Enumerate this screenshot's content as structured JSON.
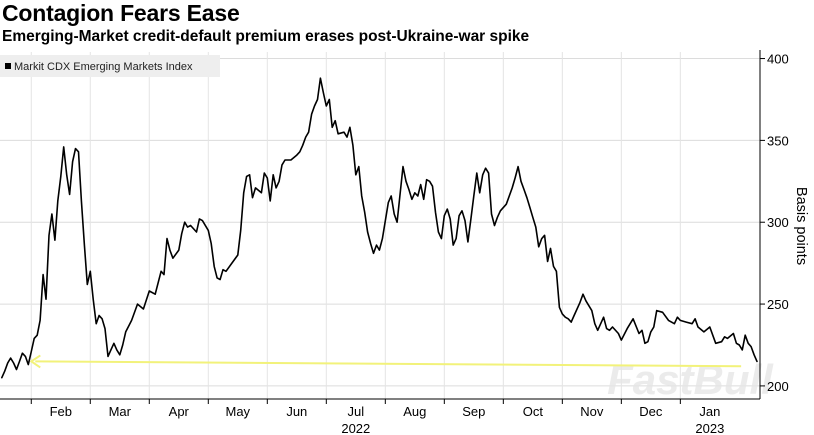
{
  "header": {
    "title": "Contagion Fears Ease",
    "subtitle": "Emerging-Market credit-default premium erases post-Ukraine-war spike"
  },
  "watermark": "FastBull",
  "chart_data": {
    "type": "line",
    "title": "Contagion Fears Ease",
    "subtitle": "Emerging-Market credit-default premium erases post-Ukraine-war spike",
    "ylabel": "Basis points",
    "xlabel": "",
    "ylim": [
      192,
      404
    ],
    "yticks": [
      200,
      250,
      300,
      350,
      400
    ],
    "grid": true,
    "legend": {
      "position": "top-left",
      "entries": [
        "Markit CDX Emerging Markets Index"
      ]
    },
    "x_tick_labels": [
      "Feb",
      "Mar",
      "Apr",
      "May",
      "Jun",
      "Jul",
      "Aug",
      "Sep",
      "Oct",
      "Nov",
      "Dec",
      "Jan"
    ],
    "x_tick_months": [
      1,
      2,
      3,
      4,
      5,
      6,
      7,
      8,
      9,
      10,
      11,
      12
    ],
    "year_labels": [
      {
        "label": "2022",
        "month": 6
      },
      {
        "label": "2023",
        "month": 12
      }
    ],
    "annotation": {
      "type": "arrow",
      "color": "#f2f27a",
      "from_month": 12.53,
      "to_month": 0.5,
      "from_value": 212,
      "to_value": 215
    },
    "series": [
      {
        "name": "Markit CDX Emerging Markets Index",
        "color": "#000000",
        "points": [
          [
            0.0,
            205
          ],
          [
            0.05,
            209
          ],
          [
            0.1,
            214
          ],
          [
            0.15,
            217
          ],
          [
            0.2,
            214
          ],
          [
            0.25,
            210
          ],
          [
            0.3,
            215
          ],
          [
            0.35,
            220
          ],
          [
            0.4,
            218
          ],
          [
            0.45,
            213
          ],
          [
            0.5,
            221
          ],
          [
            0.55,
            229
          ],
          [
            0.6,
            231
          ],
          [
            0.65,
            240
          ],
          [
            0.7,
            268
          ],
          [
            0.75,
            253
          ],
          [
            0.8,
            292
          ],
          [
            0.85,
            305
          ],
          [
            0.9,
            289
          ],
          [
            0.95,
            313
          ],
          [
            1.0,
            328
          ],
          [
            1.05,
            346
          ],
          [
            1.1,
            329
          ],
          [
            1.15,
            317
          ],
          [
            1.2,
            337
          ],
          [
            1.25,
            345
          ],
          [
            1.3,
            343
          ],
          [
            1.35,
            313
          ],
          [
            1.4,
            286
          ],
          [
            1.45,
            262
          ],
          [
            1.5,
            270
          ],
          [
            1.55,
            253
          ],
          [
            1.6,
            238
          ],
          [
            1.65,
            243
          ],
          [
            1.7,
            241
          ],
          [
            1.75,
            235
          ],
          [
            1.8,
            218
          ],
          [
            1.85,
            222
          ],
          [
            1.9,
            226
          ],
          [
            1.95,
            222
          ],
          [
            2.0,
            219
          ],
          [
            2.05,
            225
          ],
          [
            2.1,
            233
          ],
          [
            2.2,
            240
          ],
          [
            2.3,
            250
          ],
          [
            2.4,
            247
          ],
          [
            2.5,
            258
          ],
          [
            2.6,
            256
          ],
          [
            2.7,
            270
          ],
          [
            2.75,
            268
          ],
          [
            2.8,
            290
          ],
          [
            2.85,
            283
          ],
          [
            2.9,
            278
          ],
          [
            3.0,
            283
          ],
          [
            3.05,
            293
          ],
          [
            3.1,
            300
          ],
          [
            3.15,
            297
          ],
          [
            3.2,
            298
          ],
          [
            3.3,
            294
          ],
          [
            3.35,
            302
          ],
          [
            3.4,
            301
          ],
          [
            3.5,
            295
          ],
          [
            3.55,
            287
          ],
          [
            3.6,
            273
          ],
          [
            3.65,
            266
          ],
          [
            3.7,
            265
          ],
          [
            3.75,
            271
          ],
          [
            3.8,
            270
          ],
          [
            3.9,
            275
          ],
          [
            4.0,
            280
          ],
          [
            4.05,
            295
          ],
          [
            4.1,
            318
          ],
          [
            4.15,
            328
          ],
          [
            4.2,
            329
          ],
          [
            4.25,
            315
          ],
          [
            4.3,
            321
          ],
          [
            4.4,
            318
          ],
          [
            4.45,
            330
          ],
          [
            4.5,
            327
          ],
          [
            4.55,
            313
          ],
          [
            4.6,
            329
          ],
          [
            4.65,
            321
          ],
          [
            4.7,
            325
          ],
          [
            4.75,
            335
          ],
          [
            4.8,
            338
          ],
          [
            4.9,
            338
          ],
          [
            5.0,
            341
          ],
          [
            5.05,
            343
          ],
          [
            5.1,
            347
          ],
          [
            5.15,
            352
          ],
          [
            5.2,
            355
          ],
          [
            5.25,
            366
          ],
          [
            5.3,
            371
          ],
          [
            5.35,
            375
          ],
          [
            5.4,
            388
          ],
          [
            5.45,
            379
          ],
          [
            5.5,
            371
          ],
          [
            5.55,
            375
          ],
          [
            5.6,
            358
          ],
          [
            5.65,
            362
          ],
          [
            5.7,
            354
          ],
          [
            5.8,
            355
          ],
          [
            5.85,
            352
          ],
          [
            5.9,
            358
          ],
          [
            5.95,
            347
          ],
          [
            6.0,
            329
          ],
          [
            6.05,
            334
          ],
          [
            6.1,
            316
          ],
          [
            6.15,
            306
          ],
          [
            6.2,
            294
          ],
          [
            6.25,
            287
          ],
          [
            6.3,
            281
          ],
          [
            6.35,
            286
          ],
          [
            6.4,
            283
          ],
          [
            6.45,
            290
          ],
          [
            6.55,
            312
          ],
          [
            6.6,
            316
          ],
          [
            6.65,
            305
          ],
          [
            6.7,
            300
          ],
          [
            6.8,
            334
          ],
          [
            6.85,
            325
          ],
          [
            6.9,
            320
          ],
          [
            6.95,
            314
          ],
          [
            7.0,
            318
          ],
          [
            7.05,
            316
          ],
          [
            7.1,
            323
          ],
          [
            7.15,
            314
          ],
          [
            7.2,
            326
          ],
          [
            7.25,
            325
          ],
          [
            7.3,
            322
          ],
          [
            7.35,
            306
          ],
          [
            7.4,
            294
          ],
          [
            7.45,
            290
          ],
          [
            7.5,
            304
          ],
          [
            7.55,
            308
          ],
          [
            7.6,
            302
          ],
          [
            7.65,
            286
          ],
          [
            7.7,
            290
          ],
          [
            7.75,
            304
          ],
          [
            7.8,
            307
          ],
          [
            7.85,
            301
          ],
          [
            7.9,
            288
          ],
          [
            7.95,
            302
          ],
          [
            8.0,
            316
          ],
          [
            8.05,
            330
          ],
          [
            8.1,
            318
          ],
          [
            8.15,
            329
          ],
          [
            8.2,
            333
          ],
          [
            8.25,
            330
          ],
          [
            8.3,
            305
          ],
          [
            8.35,
            298
          ],
          [
            8.4,
            303
          ],
          [
            8.45,
            307
          ],
          [
            8.55,
            311
          ],
          [
            8.65,
            321
          ],
          [
            8.7,
            327
          ],
          [
            8.75,
            334
          ],
          [
            8.8,
            325
          ],
          [
            8.85,
            320
          ],
          [
            8.9,
            315
          ],
          [
            8.95,
            309
          ],
          [
            9.0,
            303
          ],
          [
            9.05,
            297
          ],
          [
            9.1,
            285
          ],
          [
            9.15,
            290
          ],
          [
            9.2,
            292
          ],
          [
            9.25,
            276
          ],
          [
            9.3,
            284
          ],
          [
            9.35,
            273
          ],
          [
            9.4,
            270
          ],
          [
            9.45,
            248
          ],
          [
            9.5,
            244
          ],
          [
            9.55,
            242
          ],
          [
            9.6,
            241
          ],
          [
            9.65,
            239
          ],
          [
            9.7,
            243
          ],
          [
            9.8,
            251
          ],
          [
            9.85,
            256
          ],
          [
            9.9,
            252
          ],
          [
            10.0,
            246
          ],
          [
            10.05,
            238
          ],
          [
            10.1,
            234
          ],
          [
            10.2,
            242
          ],
          [
            10.25,
            235
          ],
          [
            10.3,
            234
          ],
          [
            10.35,
            236
          ],
          [
            10.45,
            232
          ],
          [
            10.5,
            228
          ],
          [
            10.6,
            235
          ],
          [
            10.7,
            241
          ],
          [
            10.8,
            232
          ],
          [
            10.85,
            234
          ],
          [
            10.9,
            226
          ],
          [
            10.95,
            227
          ],
          [
            11.0,
            233
          ],
          [
            11.05,
            236
          ],
          [
            11.1,
            246
          ],
          [
            11.2,
            245
          ],
          [
            11.3,
            240
          ],
          [
            11.4,
            238
          ],
          [
            11.45,
            242
          ],
          [
            11.5,
            240
          ],
          [
            11.6,
            239
          ],
          [
            11.7,
            238
          ],
          [
            11.75,
            241
          ],
          [
            11.8,
            236
          ],
          [
            11.9,
            233
          ],
          [
            12.0,
            236
          ],
          [
            12.1,
            226
          ],
          [
            12.2,
            227
          ],
          [
            12.25,
            230
          ],
          [
            12.3,
            229
          ],
          [
            12.4,
            232
          ],
          [
            12.45,
            226
          ],
          [
            12.5,
            225
          ],
          [
            12.55,
            222
          ],
          [
            12.6,
            231
          ],
          [
            12.65,
            226
          ],
          [
            12.7,
            224
          ],
          [
            12.75,
            219
          ],
          [
            12.8,
            215
          ]
        ]
      }
    ]
  }
}
